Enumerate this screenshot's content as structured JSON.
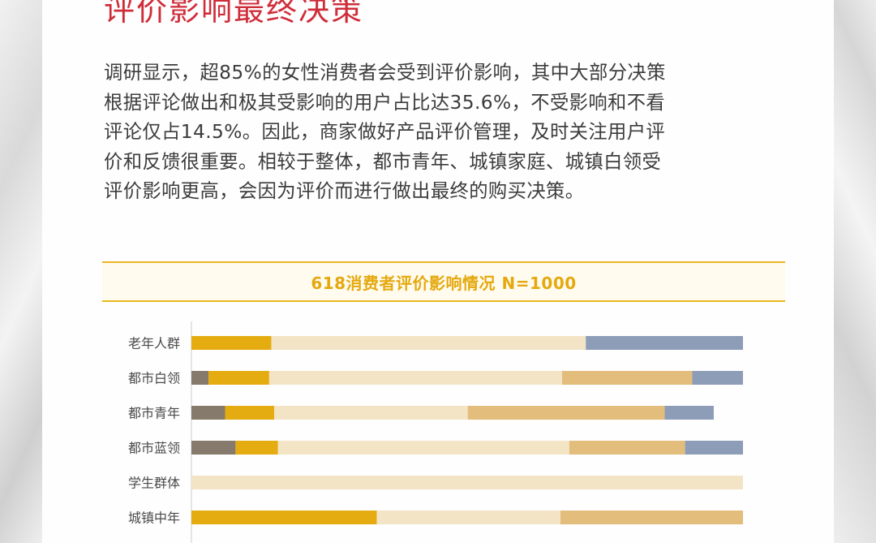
{
  "heading": "评价影响最终决策",
  "paragraph_lines": [
    "调研显示，超85%的女性消费者会受到评价影响，其中大部分决策",
    "根据评论做出和极其受影响的用户占比达35.6%，不受影响和不看",
    "评论仅占14.5%。因此，商家做好产品评价管理，及时关注用户评",
    "价和反馈很重要。相较于整体，都市青年、城镇家庭、城镇白领受",
    "评价影响更高，会因为评价而进行做出最终的购买决策。"
  ],
  "chart_data": {
    "type": "bar",
    "orientation": "horizontal",
    "stacked": true,
    "title": "618消费者评价影响情况 N=1000",
    "categories": [
      "老年人群",
      "都市白领",
      "都市青年",
      "都市蓝领",
      "学生群体",
      "城镇中年"
    ],
    "unit": "percent",
    "xlim": [
      0,
      100
    ],
    "series": [
      {
        "color": "#857a6b",
        "values": [
          0.0,
          3.1,
          6.1,
          8.0,
          0.0,
          0.0
        ]
      },
      {
        "color": "#e5ac12",
        "values": [
          14.5,
          11.0,
          8.9,
          7.7,
          0.0,
          33.6
        ]
      },
      {
        "color": "#f4e4c6",
        "values": [
          57.0,
          53.1,
          35.1,
          52.8,
          100.0,
          33.3
        ]
      },
      {
        "color": "#e3bd7c",
        "values": [
          0.0,
          23.6,
          35.7,
          21.0,
          0.0,
          33.1
        ]
      },
      {
        "color": "#8d9db7",
        "values": [
          28.5,
          9.2,
          8.9,
          10.5,
          0.0,
          0.0
        ]
      }
    ],
    "legend": "none",
    "grid": false
  }
}
